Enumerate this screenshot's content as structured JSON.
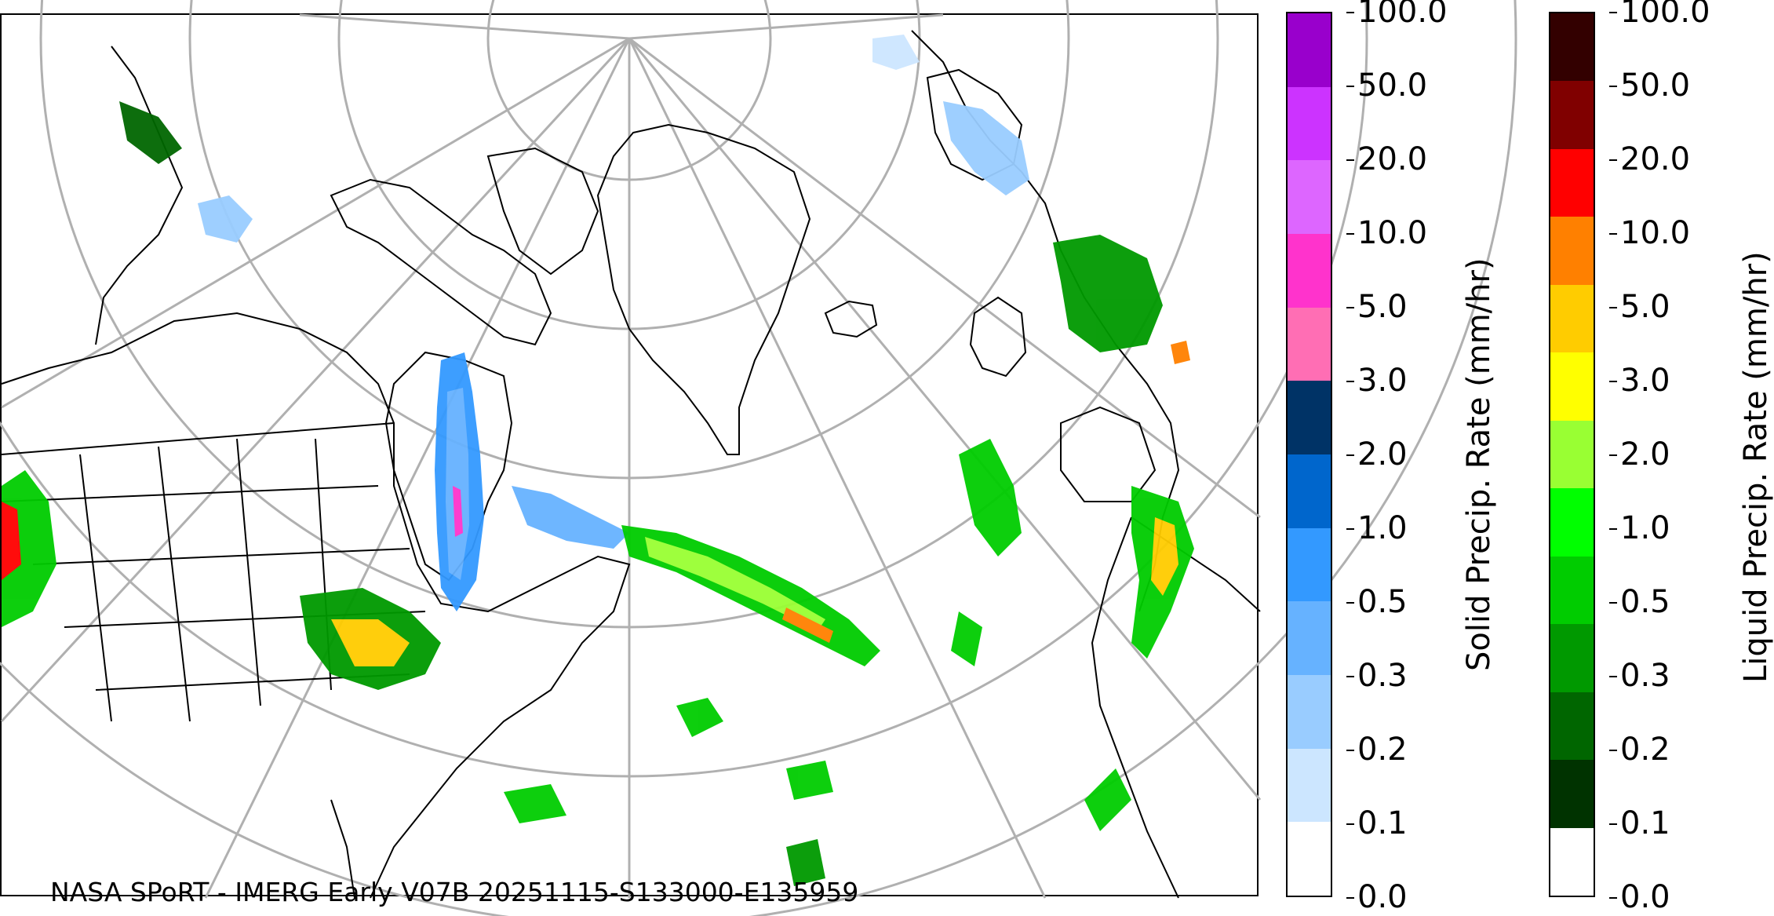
{
  "map": {
    "credit": "NASA SPoRT - IMERG Early V07B 20251115-S133000-E135959"
  },
  "solid_colorbar": {
    "label": "Solid Precip. Rate (mm/hr)",
    "ticks": [
      "0.0",
      "0.1",
      "0.2",
      "0.3",
      "0.5",
      "1.0",
      "2.0",
      "3.0",
      "5.0",
      "10.0",
      "20.0",
      "50.0",
      "100.0"
    ],
    "colors": [
      "#ffffff",
      "#cce6ff",
      "#99ccff",
      "#66b2ff",
      "#3399ff",
      "#0066cc",
      "#003366",
      "#ff6eb4",
      "#ff33cc",
      "#dd66ff",
      "#cc33ff",
      "#9900cc"
    ]
  },
  "liquid_colorbar": {
    "label": "Liquid Precip. Rate (mm/hr)",
    "ticks": [
      "0.0",
      "0.1",
      "0.2",
      "0.3",
      "0.5",
      "1.0",
      "2.0",
      "3.0",
      "5.0",
      "10.0",
      "20.0",
      "50.0",
      "100.0"
    ],
    "colors": [
      "#ffffff",
      "#003300",
      "#006600",
      "#009900",
      "#00cc00",
      "#00ff00",
      "#99ff33",
      "#ffff00",
      "#ffcc00",
      "#ff8000",
      "#ff0000",
      "#800000",
      "#330000"
    ]
  }
}
